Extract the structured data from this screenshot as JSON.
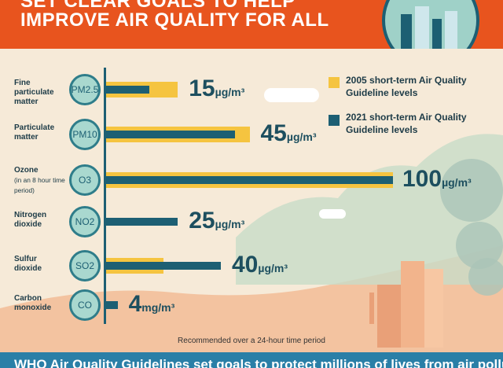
{
  "header": {
    "line1": "SET CLEAR GOALS TO HELP",
    "line2": "IMPROVE AIR QUALITY FOR ALL"
  },
  "legend": {
    "item2005": "2005 short-term Air Quality Guideline levels",
    "item2021": "2021 short-term Air Quality Guideline levels",
    "color2005": "#f5c440",
    "color2021": "#1d5f73"
  },
  "pollutants": [
    {
      "name": "Fine particulate matter",
      "symbol": "PM2.5",
      "value2005": 25,
      "value2021": 15,
      "label_value": "15",
      "label_unit": "µg/m³"
    },
    {
      "name": "Particulate matter",
      "symbol": "PM10",
      "value2005": 50,
      "value2021": 45,
      "label_value": "45",
      "label_unit": "µg/m³"
    },
    {
      "name": "Ozone",
      "subnote": "(in an 8 hour time period)",
      "symbol": "O3",
      "value2005": 100,
      "value2021": 100,
      "label_value": "100",
      "label_unit": "µg/m³"
    },
    {
      "name": "Nitrogen dioxide",
      "symbol": "NO2",
      "value2005": 0,
      "value2021": 25,
      "label_value": "25",
      "label_unit": "µg/m³"
    },
    {
      "name": "Sulfur dioxide",
      "symbol": "SO2",
      "value2005": 20,
      "value2021": 40,
      "label_value": "40",
      "label_unit": "µg/m³"
    },
    {
      "name": "Carbon monoxide",
      "symbol": "CO",
      "value2005": 0,
      "value2021": 4,
      "label_value": "4",
      "label_unit": "mg/m³"
    }
  ],
  "note": "Recommended over a 24-hour time period",
  "footer": "WHO Air Quality Guidelines set goals to protect millions of lives from air pollution"
}
